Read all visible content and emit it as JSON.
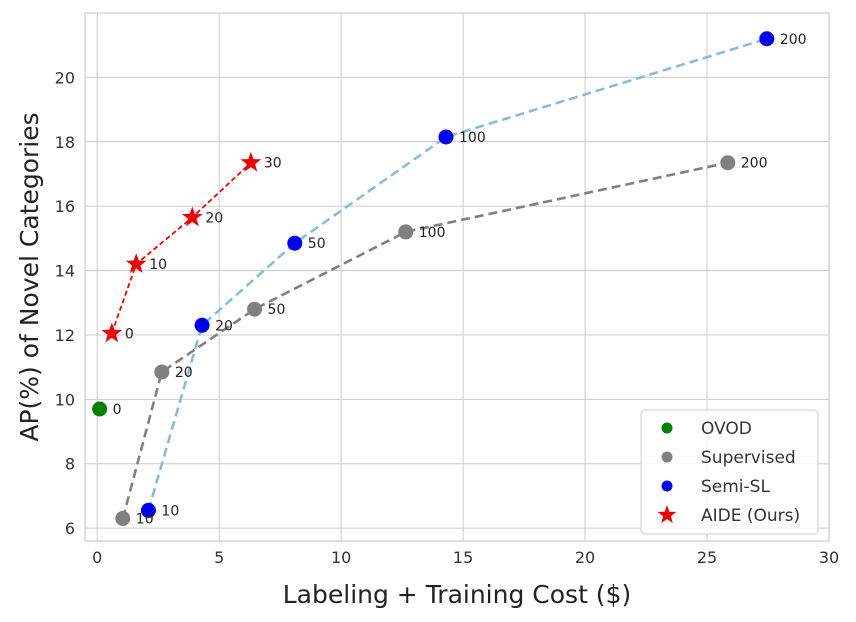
{
  "chart_data": {
    "type": "line",
    "title": "",
    "xlabel": "Labeling + Training Cost ($)",
    "ylabel": "AP(%) of Novel Categories",
    "xlim": [
      -0.5,
      30
    ],
    "ylim": [
      5.6,
      22
    ],
    "xticks": [
      0,
      5,
      10,
      15,
      20,
      25,
      30
    ],
    "yticks": [
      6,
      8,
      10,
      12,
      14,
      16,
      18,
      20
    ],
    "grid": true,
    "legend_position": "bottom-right",
    "series": [
      {
        "name": "OVOD",
        "color": "#008000",
        "marker": "circle",
        "line": false,
        "points": [
          {
            "x": 0.1,
            "y": 9.7,
            "label": "0"
          }
        ]
      },
      {
        "name": "Supervised",
        "color": "#808080",
        "marker": "circle",
        "line": true,
        "points": [
          {
            "x": 1.05,
            "y": 6.3,
            "label": "10"
          },
          {
            "x": 2.65,
            "y": 10.85,
            "label": "20"
          },
          {
            "x": 6.45,
            "y": 12.8,
            "label": "50"
          },
          {
            "x": 12.65,
            "y": 15.2,
            "label": "100"
          },
          {
            "x": 25.85,
            "y": 17.35,
            "label": "200"
          }
        ]
      },
      {
        "name": "Semi-SL",
        "color": "#0000ee",
        "line_color": "#86bcdc",
        "marker": "circle",
        "line": true,
        "points": [
          {
            "x": 2.1,
            "y": 6.55,
            "label": "10"
          },
          {
            "x": 4.3,
            "y": 12.3,
            "label": "20"
          },
          {
            "x": 8.1,
            "y": 14.85,
            "label": "50"
          },
          {
            "x": 14.3,
            "y": 18.15,
            "label": "100"
          },
          {
            "x": 27.45,
            "y": 21.2,
            "label": "200"
          }
        ]
      },
      {
        "name": "AIDE (Ours)",
        "color": "#ee0000",
        "marker": "star",
        "line": true,
        "points": [
          {
            "x": 0.6,
            "y": 12.05,
            "label": "0"
          },
          {
            "x": 1.6,
            "y": 14.2,
            "label": "10"
          },
          {
            "x": 3.9,
            "y": 15.65,
            "label": "20"
          },
          {
            "x": 6.3,
            "y": 17.35,
            "label": "30"
          }
        ]
      }
    ]
  }
}
